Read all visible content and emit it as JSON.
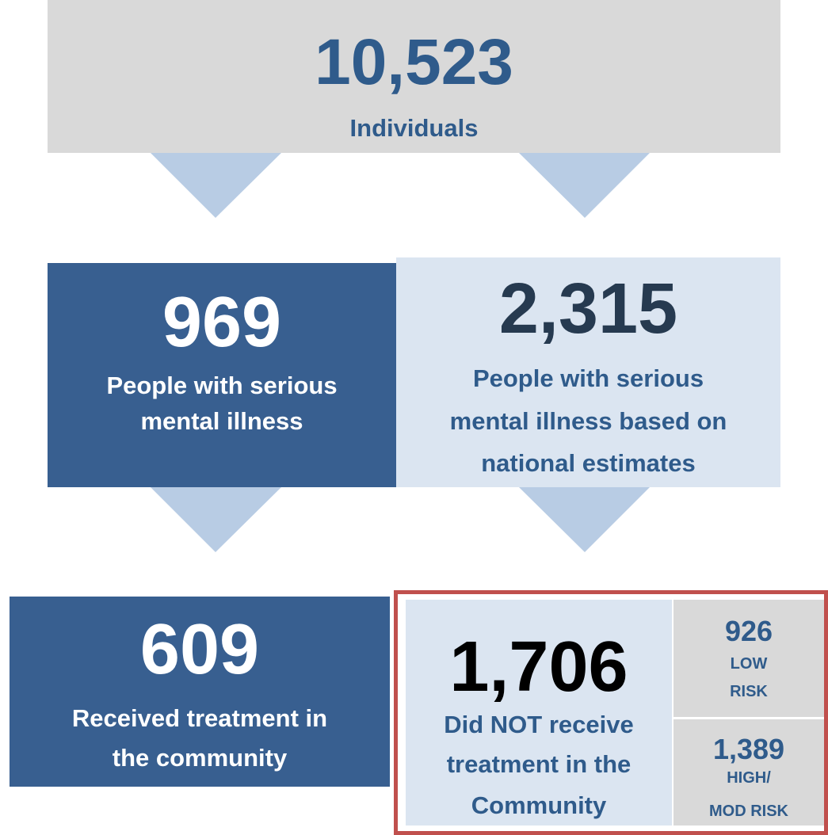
{
  "top": {
    "value": "10,523",
    "label": "Individuals"
  },
  "middle": [
    {
      "value": "969",
      "lines": [
        "People with serious",
        "mental illness"
      ]
    },
    {
      "value": "2,315",
      "lines": [
        "People with serious",
        "mental illness based on",
        "national estimates"
      ]
    }
  ],
  "bottom": [
    {
      "value": "609",
      "lines": [
        "Received treatment in",
        "the community"
      ]
    },
    {
      "value": "1,706",
      "lines": [
        "Did NOT receive",
        "treatment in the",
        "Community"
      ]
    }
  ],
  "risk": [
    {
      "value": "926",
      "lines": [
        "LOW",
        "RISK"
      ]
    },
    {
      "value": "1,389",
      "lines": [
        "HIGH/",
        "MOD RISK"
      ]
    }
  ]
}
